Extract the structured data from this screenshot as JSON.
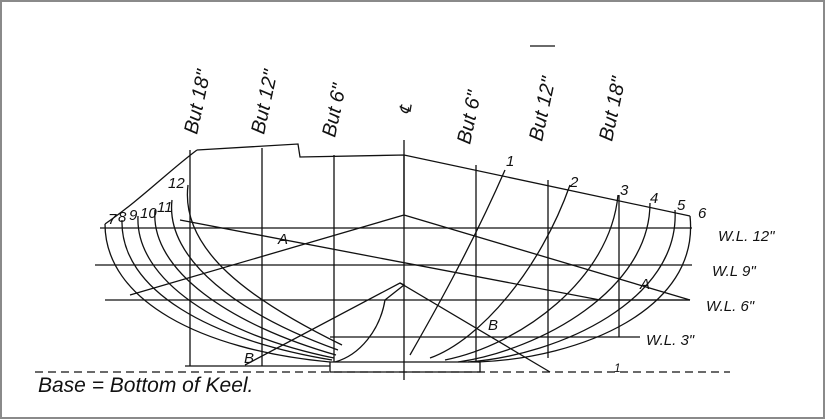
{
  "buttocks_left": [
    "But 18\"",
    "But 12\"",
    "But 6\""
  ],
  "centerline": "℄",
  "buttocks_right": [
    "But 6\"",
    "But 12\"",
    "But 18\""
  ],
  "stations_left": [
    "7",
    "8",
    "9",
    "10",
    "11",
    "12"
  ],
  "stations_right": [
    "1",
    "2",
    "3",
    "4",
    "5",
    "6"
  ],
  "waterlines": [
    "W.L. 12\"",
    "W.L 9\"",
    "W.L. 6\"",
    "W.L. 3\""
  ],
  "diagonals": [
    "A",
    "A",
    "B",
    "B"
  ],
  "base_note": "Base = Bottom of Keel.",
  "mark": "1"
}
